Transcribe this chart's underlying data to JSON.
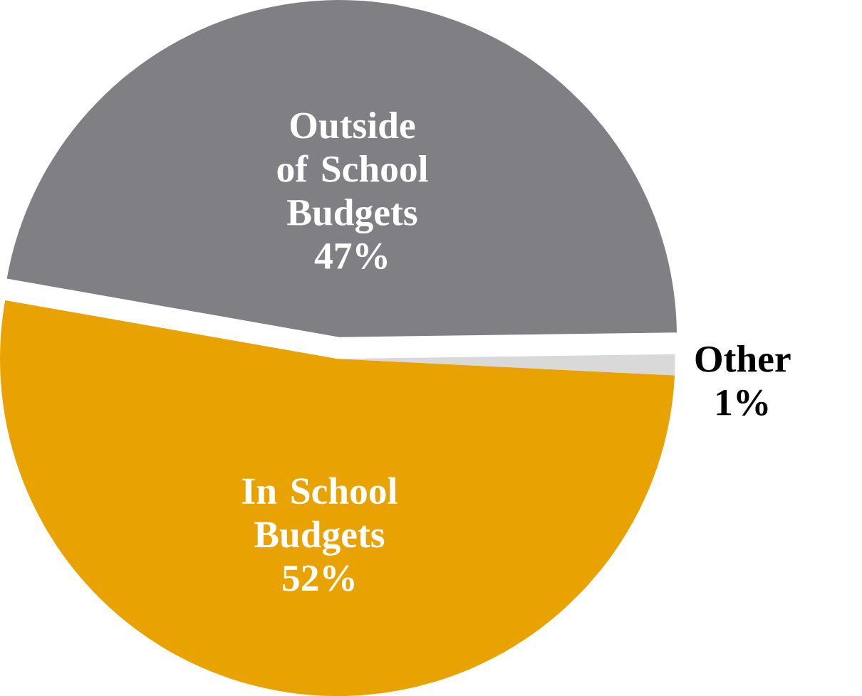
{
  "chart_data": {
    "type": "pie",
    "categories": [
      "Outside of School Budgets",
      "Other",
      "In School Budgets"
    ],
    "values": [
      47,
      1,
      52
    ],
    "value_labels": [
      "47%",
      "1%",
      "52%"
    ],
    "colors": [
      "#807f83",
      "#d9d9d9",
      "#e8a202"
    ]
  }
}
